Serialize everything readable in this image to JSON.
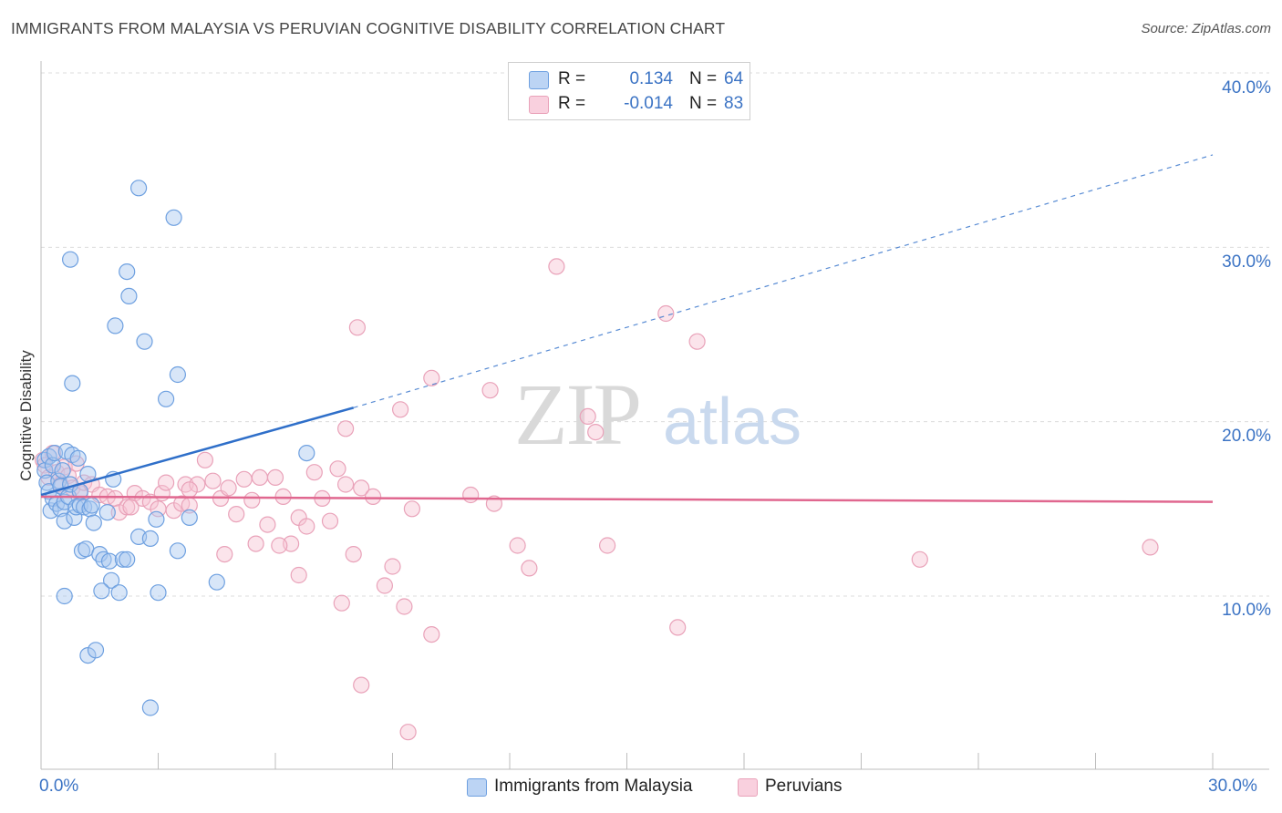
{
  "header": {
    "title": "IMMIGRANTS FROM MALAYSIA VS PERUVIAN COGNITIVE DISABILITY CORRELATION CHART",
    "source": "Source: ZipAtlas.com"
  },
  "watermark": {
    "zip": "ZIP",
    "atlas": "atlas"
  },
  "legend": {
    "r_label": "R =",
    "n_label": "N =",
    "entries": [
      {
        "r": "0.134",
        "n": "64"
      },
      {
        "r": "-0.014",
        "n": "83"
      }
    ]
  },
  "colors": {
    "blue": "#6ea0e0",
    "blue_fill": "#a9c8f0",
    "blue_line": "#2f6fc9",
    "pink": "#e9a2b9",
    "pink_fill": "#f6c3d3",
    "pink_line": "#e0678f",
    "tick_text": "#3b73c4"
  },
  "chart_data": {
    "type": "scatter",
    "title": "IMMIGRANTS FROM MALAYSIA VS PERUVIAN COGNITIVE DISABILITY CORRELATION CHART",
    "xlabel": "",
    "ylabel": "Cognitive Disability",
    "xlim": [
      0,
      30
    ],
    "ylim": [
      0,
      42
    ],
    "x_tick_labels": [
      "0.0%",
      "30.0%"
    ],
    "y_tick_labels": [
      {
        "value": 10,
        "label": "10.0%"
      },
      {
        "value": 20,
        "label": "20.0%"
      },
      {
        "value": 30,
        "label": "30.0%"
      },
      {
        "value": 40,
        "label": "40.0%"
      }
    ],
    "series": [
      {
        "name": "Immigrants from Malaysia",
        "color": "blue",
        "R": 0.134,
        "N": 64,
        "trend": {
          "x0": 0.0,
          "y0": 15.8,
          "x1": 8.0,
          "y1": 20.8,
          "dash_to_x": 30.0,
          "dash_to_y": 35.3
        },
        "points": [
          [
            0.1,
            17.8
          ],
          [
            0.1,
            17.2
          ],
          [
            0.15,
            16.5
          ],
          [
            0.2,
            18.0
          ],
          [
            0.2,
            16.0
          ],
          [
            0.25,
            14.9
          ],
          [
            0.3,
            17.5
          ],
          [
            0.3,
            15.6
          ],
          [
            0.35,
            18.2
          ],
          [
            0.4,
            15.3
          ],
          [
            0.45,
            16.6
          ],
          [
            0.5,
            15.0
          ],
          [
            0.5,
            16.3
          ],
          [
            0.55,
            17.2
          ],
          [
            0.6,
            15.4
          ],
          [
            0.6,
            14.3
          ],
          [
            0.65,
            18.3
          ],
          [
            0.7,
            15.7
          ],
          [
            0.75,
            16.4
          ],
          [
            0.8,
            18.1
          ],
          [
            0.85,
            14.5
          ],
          [
            0.9,
            15.1
          ],
          [
            0.95,
            17.9
          ],
          [
            1.0,
            16.0
          ],
          [
            1.0,
            15.2
          ],
          [
            1.05,
            12.6
          ],
          [
            1.1,
            15.1
          ],
          [
            1.15,
            12.7
          ],
          [
            1.2,
            17.0
          ],
          [
            1.25,
            15.0
          ],
          [
            1.3,
            15.2
          ],
          [
            1.35,
            14.2
          ],
          [
            1.5,
            12.4
          ],
          [
            1.6,
            12.1
          ],
          [
            1.7,
            14.8
          ],
          [
            1.75,
            12.0
          ],
          [
            1.8,
            10.9
          ],
          [
            1.85,
            16.7
          ],
          [
            2.0,
            10.2
          ],
          [
            2.1,
            12.1
          ],
          [
            2.2,
            12.1
          ],
          [
            2.5,
            13.4
          ],
          [
            2.8,
            13.3
          ],
          [
            3.0,
            10.2
          ],
          [
            3.5,
            12.6
          ],
          [
            3.8,
            14.5
          ],
          [
            4.5,
            10.8
          ],
          [
            0.75,
            29.3
          ],
          [
            0.8,
            22.2
          ],
          [
            1.9,
            25.5
          ],
          [
            2.2,
            28.6
          ],
          [
            2.25,
            27.2
          ],
          [
            2.5,
            33.4
          ],
          [
            2.65,
            24.6
          ],
          [
            3.2,
            21.3
          ],
          [
            3.4,
            31.7
          ],
          [
            3.5,
            22.7
          ],
          [
            0.6,
            10.0
          ],
          [
            1.2,
            6.6
          ],
          [
            1.4,
            6.9
          ],
          [
            2.8,
            3.6
          ],
          [
            6.8,
            18.2
          ],
          [
            1.55,
            10.3
          ],
          [
            2.95,
            14.4
          ]
        ]
      },
      {
        "name": "Peruvians",
        "color": "pink",
        "R": -0.014,
        "N": 83,
        "trend": {
          "x0": 0.0,
          "y0": 15.7,
          "x1": 30.0,
          "y1": 15.4
        },
        "points": [
          [
            0.05,
            17.8
          ],
          [
            0.1,
            17.5
          ],
          [
            0.2,
            16.8
          ],
          [
            0.3,
            18.2
          ],
          [
            0.4,
            17.1
          ],
          [
            0.5,
            16.4
          ],
          [
            0.6,
            17.4
          ],
          [
            0.7,
            16.9
          ],
          [
            0.8,
            16.2
          ],
          [
            0.9,
            17.6
          ],
          [
            1.0,
            15.9
          ],
          [
            1.1,
            16.5
          ],
          [
            1.3,
            16.4
          ],
          [
            1.5,
            15.8
          ],
          [
            1.7,
            15.7
          ],
          [
            1.9,
            15.6
          ],
          [
            2.0,
            14.8
          ],
          [
            2.2,
            15.1
          ],
          [
            2.4,
            15.9
          ],
          [
            2.6,
            15.6
          ],
          [
            2.8,
            15.4
          ],
          [
            3.0,
            15.0
          ],
          [
            3.1,
            15.9
          ],
          [
            3.2,
            16.5
          ],
          [
            3.4,
            14.9
          ],
          [
            3.6,
            15.3
          ],
          [
            3.7,
            16.4
          ],
          [
            3.8,
            15.2
          ],
          [
            4.0,
            16.4
          ],
          [
            4.2,
            17.8
          ],
          [
            4.4,
            16.6
          ],
          [
            4.6,
            15.6
          ],
          [
            4.8,
            16.2
          ],
          [
            5.0,
            14.7
          ],
          [
            5.2,
            16.7
          ],
          [
            5.4,
            15.5
          ],
          [
            5.6,
            16.8
          ],
          [
            5.8,
            14.1
          ],
          [
            6.0,
            16.8
          ],
          [
            6.2,
            15.7
          ],
          [
            6.4,
            13.0
          ],
          [
            6.6,
            14.5
          ],
          [
            6.8,
            14.0
          ],
          [
            7.0,
            17.1
          ],
          [
            7.2,
            15.6
          ],
          [
            7.4,
            14.3
          ],
          [
            7.6,
            17.3
          ],
          [
            7.8,
            16.4
          ],
          [
            8.0,
            12.4
          ],
          [
            8.2,
            16.2
          ],
          [
            8.5,
            15.7
          ],
          [
            8.8,
            10.6
          ],
          [
            9.2,
            20.7
          ],
          [
            9.5,
            15.0
          ],
          [
            10.0,
            22.5
          ],
          [
            11.0,
            15.8
          ],
          [
            11.5,
            21.8
          ],
          [
            11.6,
            15.3
          ],
          [
            12.2,
            12.9
          ],
          [
            12.5,
            11.6
          ],
          [
            13.2,
            28.9
          ],
          [
            14.0,
            20.3
          ],
          [
            14.2,
            19.4
          ],
          [
            14.5,
            12.9
          ],
          [
            16.0,
            26.2
          ],
          [
            16.3,
            8.2
          ],
          [
            16.8,
            24.6
          ],
          [
            8.1,
            25.4
          ],
          [
            7.8,
            19.6
          ],
          [
            6.1,
            12.9
          ],
          [
            3.8,
            16.1
          ],
          [
            2.3,
            15.1
          ],
          [
            4.7,
            12.4
          ],
          [
            6.6,
            11.2
          ],
          [
            9.0,
            11.7
          ],
          [
            9.3,
            9.4
          ],
          [
            7.7,
            9.6
          ],
          [
            10.0,
            7.8
          ],
          [
            8.2,
            4.9
          ],
          [
            9.4,
            2.2
          ],
          [
            22.5,
            12.1
          ],
          [
            28.4,
            12.8
          ],
          [
            5.5,
            13.0
          ]
        ]
      }
    ]
  },
  "bottom_legend": [
    {
      "label": "Immigrants from Malaysia",
      "color": "blue"
    },
    {
      "label": "Peruvians",
      "color": "pink"
    }
  ]
}
